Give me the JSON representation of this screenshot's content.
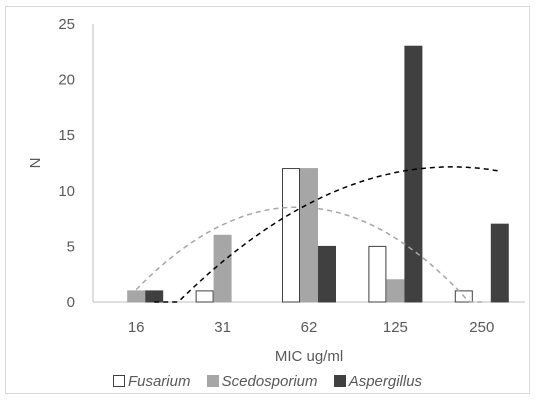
{
  "chart_data": {
    "type": "bar",
    "categories": [
      "16",
      "31",
      "62",
      "125",
      "250"
    ],
    "xlabel": "MIC ug/ml",
    "ylabel": "N",
    "ylim": [
      0,
      25
    ],
    "yticks": [
      0,
      5,
      10,
      15,
      20,
      25
    ],
    "grid": false,
    "legend_position": "bottom",
    "series": [
      {
        "name": "Fusarium",
        "values": [
          0,
          1,
          12,
          5,
          1
        ],
        "fill": "#ffffff",
        "stroke": "#404040"
      },
      {
        "name": "Scedosporium",
        "values": [
          1,
          6,
          12,
          2,
          0
        ],
        "fill": "#a6a6a6",
        "stroke": "#a6a6a6"
      },
      {
        "name": "Aspergillus",
        "values": [
          1,
          0,
          5,
          23,
          7
        ],
        "fill": "#404040",
        "stroke": "#404040"
      }
    ],
    "trendlines": [
      {
        "type": "polynomial",
        "series": "Scedosporium",
        "style": "dashed",
        "color": "#a6a6a6"
      },
      {
        "type": "polynomial",
        "series": "Aspergillus",
        "style": "dashed",
        "color": "#000000"
      }
    ]
  }
}
